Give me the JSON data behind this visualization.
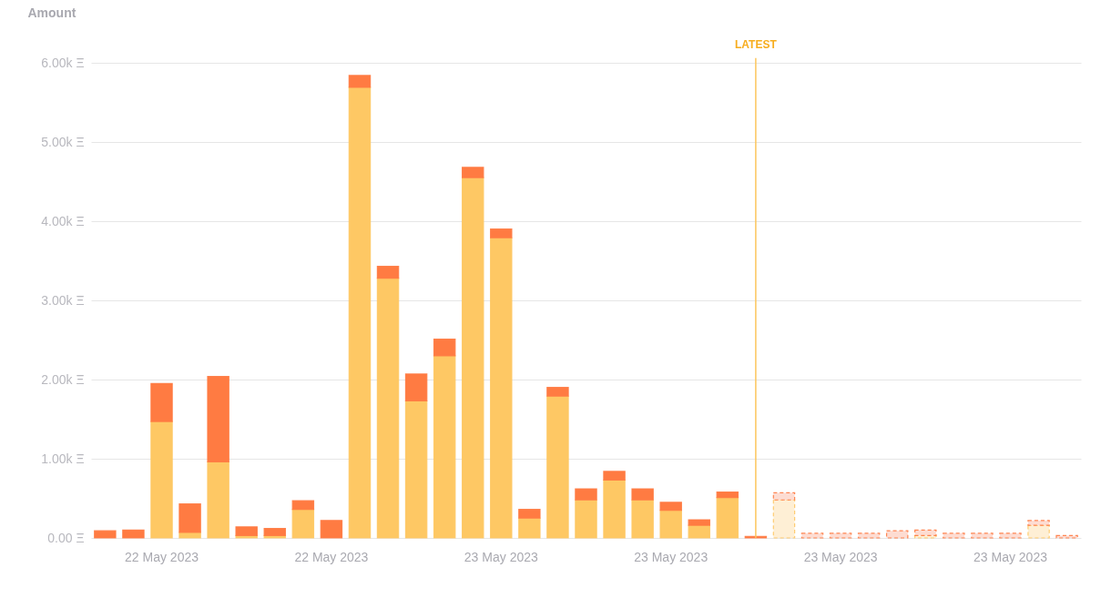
{
  "chart_data": {
    "type": "bar",
    "stacked": true,
    "ylabel": "Amount",
    "categories": [
      null,
      null,
      "22 May 2023",
      null,
      null,
      null,
      null,
      null,
      "22 May 2023",
      null,
      null,
      null,
      null,
      null,
      "23 May 2023",
      null,
      null,
      null,
      null,
      null,
      "23 May 2023",
      null,
      null,
      null,
      null,
      null,
      "23 May 2023",
      null,
      null,
      null,
      null,
      null,
      "23 May 2023",
      null,
      null
    ],
    "series": [
      {
        "color": "#fec864",
        "values": [
          null,
          null,
          1470,
          70,
          960,
          30,
          30,
          360,
          null,
          5690,
          3280,
          1730,
          2300,
          4550,
          3790,
          250,
          1790,
          480,
          730,
          480,
          350,
          160,
          510,
          null,
          null,
          null,
          null,
          null,
          null,
          null,
          null,
          null,
          null,
          null,
          null
        ]
      },
      {
        "color": "#ff7b42",
        "values": [
          90,
          100,
          480,
          360,
          1080,
          110,
          90,
          110,
          220,
          150,
          150,
          340,
          210,
          130,
          110,
          110,
          110,
          140,
          110,
          140,
          100,
          70,
          70,
          20,
          null,
          null,
          null,
          null,
          null,
          null,
          null,
          null,
          null,
          null,
          null
        ]
      },
      {
        "color": "#feefd5",
        "line_style": "dashed",
        "values": [
          null,
          null,
          null,
          null,
          null,
          null,
          null,
          null,
          null,
          null,
          null,
          null,
          null,
          null,
          null,
          null,
          null,
          null,
          null,
          null,
          null,
          null,
          null,
          null,
          480,
          null,
          null,
          null,
          null,
          30,
          null,
          null,
          null,
          160,
          null
        ]
      },
      {
        "color": "#fddcd2",
        "line_style": "dashed",
        "values": [
          null,
          null,
          null,
          null,
          null,
          null,
          null,
          null,
          null,
          null,
          null,
          null,
          null,
          null,
          null,
          null,
          null,
          null,
          null,
          null,
          null,
          null,
          null,
          null,
          90,
          60,
          60,
          60,
          90,
          70,
          60,
          60,
          60,
          60,
          30
        ]
      }
    ],
    "ylim": [
      0,
      6000
    ],
    "yticks": [
      {
        "value": 0,
        "label": "0.00 Ξ"
      },
      {
        "value": 1000,
        "label": "1.00k Ξ"
      },
      {
        "value": 2000,
        "label": "2.00k Ξ"
      },
      {
        "value": 3000,
        "label": "3.00k Ξ"
      },
      {
        "value": 4000,
        "label": "4.00k Ξ"
      },
      {
        "value": 5000,
        "label": "5.00k Ξ"
      },
      {
        "value": 6000,
        "label": "6.00k Ξ"
      }
    ],
    "grid": "y",
    "annotations": [
      "LATEST"
    ]
  }
}
